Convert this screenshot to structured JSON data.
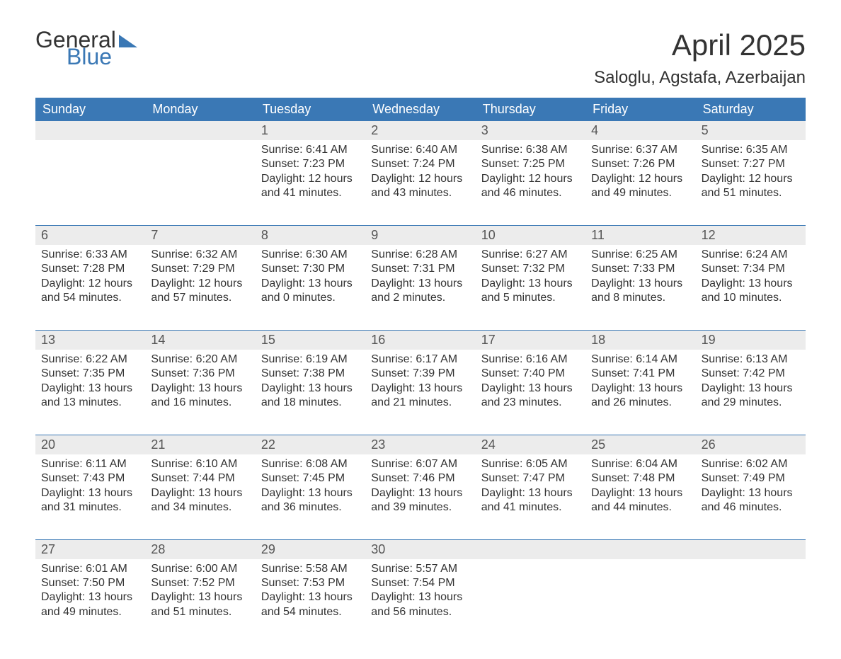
{
  "logo": {
    "text_general": "General",
    "text_blue": "Blue"
  },
  "title": {
    "month": "April 2025",
    "location": "Saloglu, Agstafa, Azerbaijan"
  },
  "colors": {
    "header_bg": "#3a78b5",
    "header_text": "#ffffff",
    "daynum_bg": "#ececec",
    "text": "#333333",
    "rule": "#3a78b5",
    "page_bg": "#ffffff"
  },
  "weekdays": [
    "Sunday",
    "Monday",
    "Tuesday",
    "Wednesday",
    "Thursday",
    "Friday",
    "Saturday"
  ],
  "weeks": [
    [
      {
        "num": "",
        "sunrise": "",
        "sunset": "",
        "daylight1": "",
        "daylight2": ""
      },
      {
        "num": "",
        "sunrise": "",
        "sunset": "",
        "daylight1": "",
        "daylight2": ""
      },
      {
        "num": "1",
        "sunrise": "Sunrise: 6:41 AM",
        "sunset": "Sunset: 7:23 PM",
        "daylight1": "Daylight: 12 hours",
        "daylight2": "and 41 minutes."
      },
      {
        "num": "2",
        "sunrise": "Sunrise: 6:40 AM",
        "sunset": "Sunset: 7:24 PM",
        "daylight1": "Daylight: 12 hours",
        "daylight2": "and 43 minutes."
      },
      {
        "num": "3",
        "sunrise": "Sunrise: 6:38 AM",
        "sunset": "Sunset: 7:25 PM",
        "daylight1": "Daylight: 12 hours",
        "daylight2": "and 46 minutes."
      },
      {
        "num": "4",
        "sunrise": "Sunrise: 6:37 AM",
        "sunset": "Sunset: 7:26 PM",
        "daylight1": "Daylight: 12 hours",
        "daylight2": "and 49 minutes."
      },
      {
        "num": "5",
        "sunrise": "Sunrise: 6:35 AM",
        "sunset": "Sunset: 7:27 PM",
        "daylight1": "Daylight: 12 hours",
        "daylight2": "and 51 minutes."
      }
    ],
    [
      {
        "num": "6",
        "sunrise": "Sunrise: 6:33 AM",
        "sunset": "Sunset: 7:28 PM",
        "daylight1": "Daylight: 12 hours",
        "daylight2": "and 54 minutes."
      },
      {
        "num": "7",
        "sunrise": "Sunrise: 6:32 AM",
        "sunset": "Sunset: 7:29 PM",
        "daylight1": "Daylight: 12 hours",
        "daylight2": "and 57 minutes."
      },
      {
        "num": "8",
        "sunrise": "Sunrise: 6:30 AM",
        "sunset": "Sunset: 7:30 PM",
        "daylight1": "Daylight: 13 hours",
        "daylight2": "and 0 minutes."
      },
      {
        "num": "9",
        "sunrise": "Sunrise: 6:28 AM",
        "sunset": "Sunset: 7:31 PM",
        "daylight1": "Daylight: 13 hours",
        "daylight2": "and 2 minutes."
      },
      {
        "num": "10",
        "sunrise": "Sunrise: 6:27 AM",
        "sunset": "Sunset: 7:32 PM",
        "daylight1": "Daylight: 13 hours",
        "daylight2": "and 5 minutes."
      },
      {
        "num": "11",
        "sunrise": "Sunrise: 6:25 AM",
        "sunset": "Sunset: 7:33 PM",
        "daylight1": "Daylight: 13 hours",
        "daylight2": "and 8 minutes."
      },
      {
        "num": "12",
        "sunrise": "Sunrise: 6:24 AM",
        "sunset": "Sunset: 7:34 PM",
        "daylight1": "Daylight: 13 hours",
        "daylight2": "and 10 minutes."
      }
    ],
    [
      {
        "num": "13",
        "sunrise": "Sunrise: 6:22 AM",
        "sunset": "Sunset: 7:35 PM",
        "daylight1": "Daylight: 13 hours",
        "daylight2": "and 13 minutes."
      },
      {
        "num": "14",
        "sunrise": "Sunrise: 6:20 AM",
        "sunset": "Sunset: 7:36 PM",
        "daylight1": "Daylight: 13 hours",
        "daylight2": "and 16 minutes."
      },
      {
        "num": "15",
        "sunrise": "Sunrise: 6:19 AM",
        "sunset": "Sunset: 7:38 PM",
        "daylight1": "Daylight: 13 hours",
        "daylight2": "and 18 minutes."
      },
      {
        "num": "16",
        "sunrise": "Sunrise: 6:17 AM",
        "sunset": "Sunset: 7:39 PM",
        "daylight1": "Daylight: 13 hours",
        "daylight2": "and 21 minutes."
      },
      {
        "num": "17",
        "sunrise": "Sunrise: 6:16 AM",
        "sunset": "Sunset: 7:40 PM",
        "daylight1": "Daylight: 13 hours",
        "daylight2": "and 23 minutes."
      },
      {
        "num": "18",
        "sunrise": "Sunrise: 6:14 AM",
        "sunset": "Sunset: 7:41 PM",
        "daylight1": "Daylight: 13 hours",
        "daylight2": "and 26 minutes."
      },
      {
        "num": "19",
        "sunrise": "Sunrise: 6:13 AM",
        "sunset": "Sunset: 7:42 PM",
        "daylight1": "Daylight: 13 hours",
        "daylight2": "and 29 minutes."
      }
    ],
    [
      {
        "num": "20",
        "sunrise": "Sunrise: 6:11 AM",
        "sunset": "Sunset: 7:43 PM",
        "daylight1": "Daylight: 13 hours",
        "daylight2": "and 31 minutes."
      },
      {
        "num": "21",
        "sunrise": "Sunrise: 6:10 AM",
        "sunset": "Sunset: 7:44 PM",
        "daylight1": "Daylight: 13 hours",
        "daylight2": "and 34 minutes."
      },
      {
        "num": "22",
        "sunrise": "Sunrise: 6:08 AM",
        "sunset": "Sunset: 7:45 PM",
        "daylight1": "Daylight: 13 hours",
        "daylight2": "and 36 minutes."
      },
      {
        "num": "23",
        "sunrise": "Sunrise: 6:07 AM",
        "sunset": "Sunset: 7:46 PM",
        "daylight1": "Daylight: 13 hours",
        "daylight2": "and 39 minutes."
      },
      {
        "num": "24",
        "sunrise": "Sunrise: 6:05 AM",
        "sunset": "Sunset: 7:47 PM",
        "daylight1": "Daylight: 13 hours",
        "daylight2": "and 41 minutes."
      },
      {
        "num": "25",
        "sunrise": "Sunrise: 6:04 AM",
        "sunset": "Sunset: 7:48 PM",
        "daylight1": "Daylight: 13 hours",
        "daylight2": "and 44 minutes."
      },
      {
        "num": "26",
        "sunrise": "Sunrise: 6:02 AM",
        "sunset": "Sunset: 7:49 PM",
        "daylight1": "Daylight: 13 hours",
        "daylight2": "and 46 minutes."
      }
    ],
    [
      {
        "num": "27",
        "sunrise": "Sunrise: 6:01 AM",
        "sunset": "Sunset: 7:50 PM",
        "daylight1": "Daylight: 13 hours",
        "daylight2": "and 49 minutes."
      },
      {
        "num": "28",
        "sunrise": "Sunrise: 6:00 AM",
        "sunset": "Sunset: 7:52 PM",
        "daylight1": "Daylight: 13 hours",
        "daylight2": "and 51 minutes."
      },
      {
        "num": "29",
        "sunrise": "Sunrise: 5:58 AM",
        "sunset": "Sunset: 7:53 PM",
        "daylight1": "Daylight: 13 hours",
        "daylight2": "and 54 minutes."
      },
      {
        "num": "30",
        "sunrise": "Sunrise: 5:57 AM",
        "sunset": "Sunset: 7:54 PM",
        "daylight1": "Daylight: 13 hours",
        "daylight2": "and 56 minutes."
      },
      {
        "num": "",
        "sunrise": "",
        "sunset": "",
        "daylight1": "",
        "daylight2": ""
      },
      {
        "num": "",
        "sunrise": "",
        "sunset": "",
        "daylight1": "",
        "daylight2": ""
      },
      {
        "num": "",
        "sunrise": "",
        "sunset": "",
        "daylight1": "",
        "daylight2": ""
      }
    ]
  ]
}
